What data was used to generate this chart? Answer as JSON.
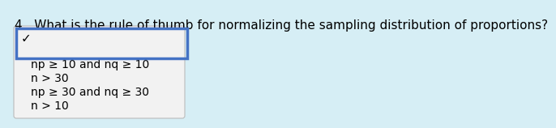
{
  "question": "4.  What is the rule of thumb for normalizing the sampling distribution of proportions?",
  "bg_color": "#d6eef5",
  "dropdown_bg": "#f2f2f2",
  "dropdown_border_color": "#4472c4",
  "dropdown_gray_border": "#bbbbbb",
  "checkmark": "✓",
  "options": [
    "np ≥ 10 and nq ≥ 10",
    "n > 30",
    "np ≥ 30 and nq ≥ 30",
    "n > 10"
  ],
  "question_fontsize": 11.0,
  "option_fontsize": 10.0,
  "checkmark_fontsize": 11.0
}
